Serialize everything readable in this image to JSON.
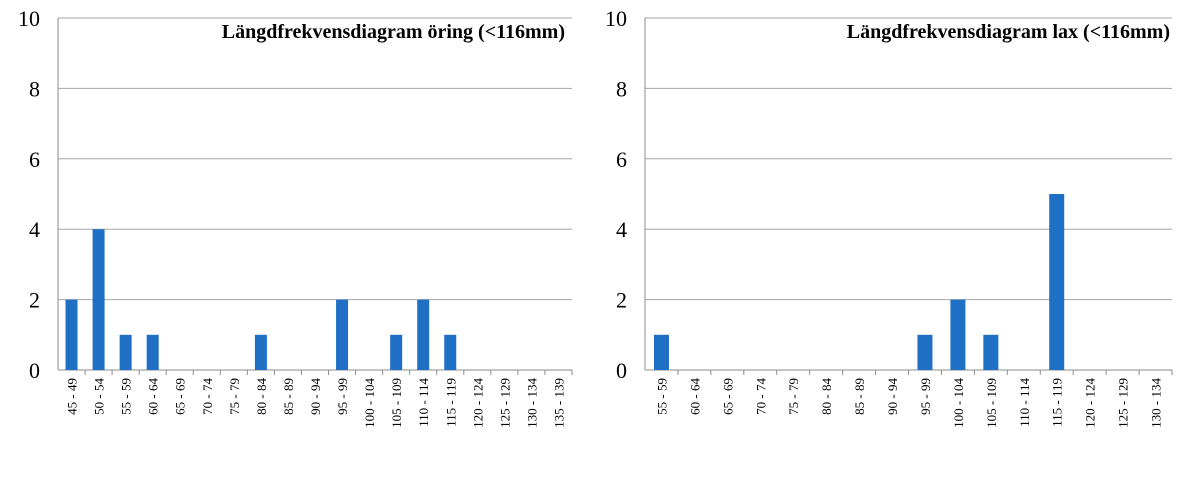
{
  "chart_data": [
    {
      "type": "bar",
      "title": "Längdfrekvensdiagram öring (<116mm)",
      "xlabel": "",
      "ylabel": "",
      "ylim": [
        0,
        10
      ],
      "yticks": [
        "0",
        "2",
        "4",
        "6",
        "8",
        "10"
      ],
      "grid": true,
      "colors": {
        "bar": "#1f6fc5",
        "grid": "#a6a6a6"
      },
      "categories": [
        "45 - 49",
        "50 - 54",
        "55 - 59",
        "60 - 64",
        "65 - 69",
        "70 - 74",
        "75 - 79",
        "80 - 84",
        "85 - 89",
        "90 - 94",
        "95 - 99",
        "100 - 104",
        "105 - 109",
        "110 - 114",
        "115 - 119",
        "120 - 124",
        "125 - 129",
        "130 - 134",
        "135 - 139"
      ],
      "values": [
        2,
        4,
        1,
        1,
        0,
        0,
        0,
        1,
        0,
        0,
        2,
        0,
        1,
        2,
        1,
        0,
        0,
        0,
        0
      ]
    },
    {
      "type": "bar",
      "title": "Längdfrekvensdiagram lax (<116mm)",
      "xlabel": "",
      "ylabel": "",
      "ylim": [
        0,
        10
      ],
      "yticks": [
        "0",
        "2",
        "4",
        "6",
        "8",
        "10"
      ],
      "grid": true,
      "colors": {
        "bar": "#1f6fc5",
        "grid": "#a6a6a6"
      },
      "categories": [
        "55 - 59",
        "60 - 64",
        "65 - 69",
        "70 - 74",
        "75 - 79",
        "80 - 84",
        "85 - 89",
        "90 - 94",
        "95 - 99",
        "100 - 104",
        "105 - 109",
        "110 - 114",
        "115 - 119",
        "120 - 124",
        "125 - 129",
        "130 - 134"
      ],
      "values": [
        1,
        0,
        0,
        0,
        0,
        0,
        0,
        0,
        1,
        2,
        1,
        0,
        5,
        0,
        0,
        0
      ]
    }
  ]
}
